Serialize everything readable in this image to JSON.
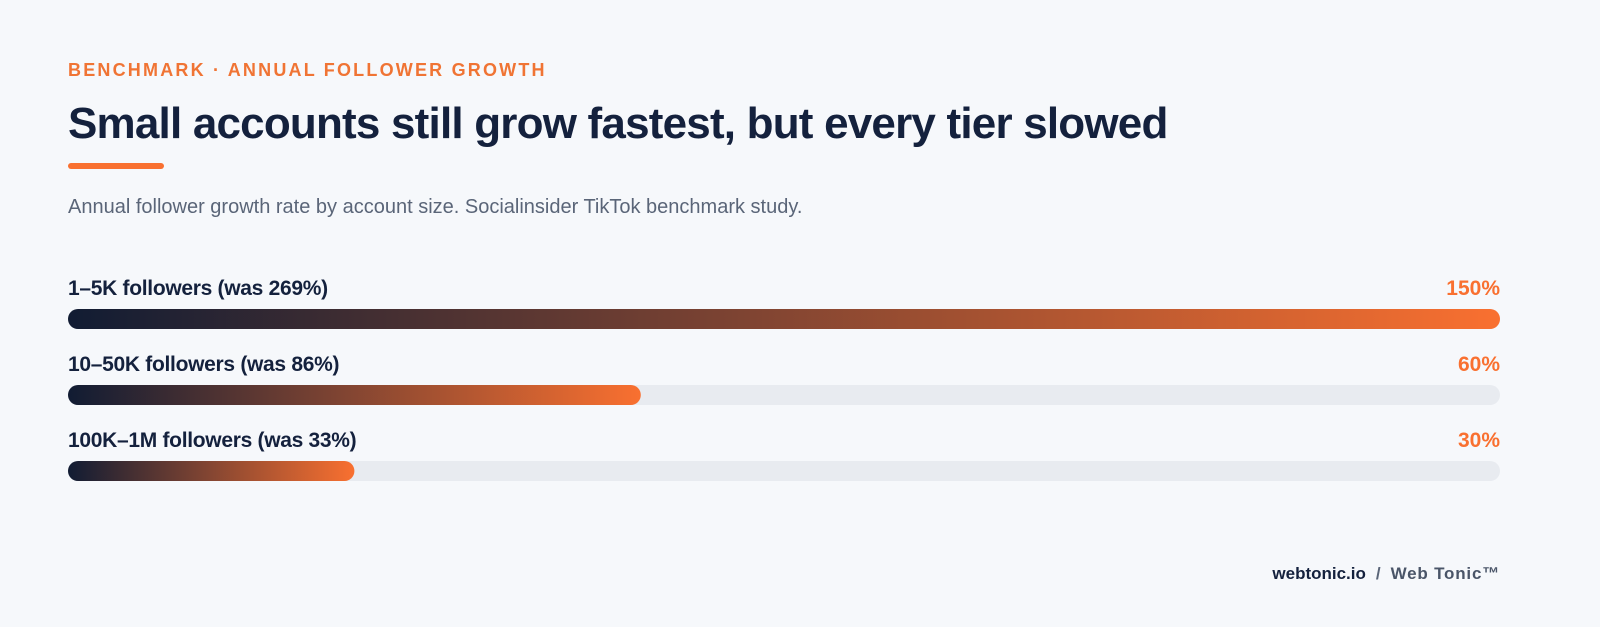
{
  "chart_data": {
    "type": "bar",
    "orientation": "horizontal",
    "kicker": "BENCHMARK · ANNUAL FOLLOWER GROWTH",
    "title": "Small accounts still grow fastest, but every tier slowed",
    "subtitle": "Annual follower growth rate by account size. Socialinsider TikTok benchmark study.",
    "categories": [
      "1–5K followers (was 269%)",
      "10–50K followers (was 86%)",
      "100K–1M followers (was 33%)"
    ],
    "values": [
      150,
      60,
      30
    ],
    "value_labels": [
      "150%",
      "60%",
      "30%"
    ],
    "xlim": [
      0,
      150
    ],
    "color_start": "#111c33",
    "color_end": "#f97030",
    "track_color": "#e8ebf0"
  },
  "footer": {
    "site": "webtonic.io",
    "separator": "/",
    "brand": "Web Tonic™"
  }
}
